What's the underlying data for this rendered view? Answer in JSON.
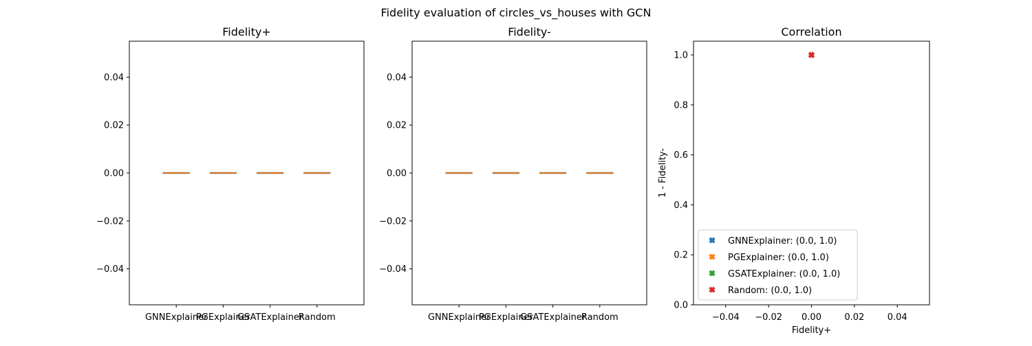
{
  "suptitle": "Fidelity evaluation of circles_vs_houses with GCN",
  "chart_data": [
    {
      "type": "box",
      "title": "Fidelity+",
      "xlabel": "",
      "ylabel": "",
      "categories": [
        "GNNExplainer",
        "PGExplainer",
        "GSATExplainer",
        "Random"
      ],
      "values": [
        0.0,
        0.0,
        0.0,
        0.0
      ],
      "ylim": [
        -0.055,
        0.055
      ],
      "yticks": [
        -0.04,
        -0.02,
        0.0,
        0.02,
        0.04
      ],
      "ytick_labels": [
        "−0.04",
        "−0.02",
        "0.00",
        "0.02",
        "0.04"
      ],
      "median_color": "#ff7f0e",
      "grid": false
    },
    {
      "type": "box",
      "title": "Fidelity-",
      "xlabel": "",
      "ylabel": "",
      "categories": [
        "GNNExplainer",
        "PGExplainer",
        "GSATExplainer",
        "Random"
      ],
      "values": [
        0.0,
        0.0,
        0.0,
        0.0
      ],
      "ylim": [
        -0.055,
        0.055
      ],
      "yticks": [
        -0.04,
        -0.02,
        0.0,
        0.02,
        0.04
      ],
      "ytick_labels": [
        "−0.04",
        "−0.02",
        "0.00",
        "0.02",
        "0.04"
      ],
      "median_color": "#ff7f0e",
      "grid": false
    },
    {
      "type": "scatter",
      "title": "Correlation",
      "xlabel": "Fidelity+",
      "ylabel": "1 - Fidelity-",
      "xlim": [
        -0.055,
        0.055
      ],
      "ylim": [
        0.0,
        1.055
      ],
      "xticks": [
        -0.04,
        -0.02,
        0.0,
        0.02,
        0.04
      ],
      "xtick_labels": [
        "−0.04",
        "−0.02",
        "0.00",
        "0.02",
        "0.04"
      ],
      "yticks": [
        0.0,
        0.2,
        0.4,
        0.6,
        0.8,
        1.0
      ],
      "ytick_labels": [
        "0.0",
        "0.2",
        "0.4",
        "0.6",
        "0.8",
        "1.0"
      ],
      "marker": "X",
      "legend_position": "lower-left",
      "grid": false,
      "series": [
        {
          "name": "GNNExplainer: (0.0, 1.0)",
          "x": 0.0,
          "y": 1.0,
          "color": "#1f77b4"
        },
        {
          "name": "PGExplainer: (0.0, 1.0)",
          "x": 0.0,
          "y": 1.0,
          "color": "#ff7f0e"
        },
        {
          "name": "GSATExplainer: (0.0, 1.0)",
          "x": 0.0,
          "y": 1.0,
          "color": "#2ca02c"
        },
        {
          "name": "Random: (0.0, 1.0)",
          "x": 0.0,
          "y": 1.0,
          "color": "#d62728"
        }
      ]
    }
  ]
}
